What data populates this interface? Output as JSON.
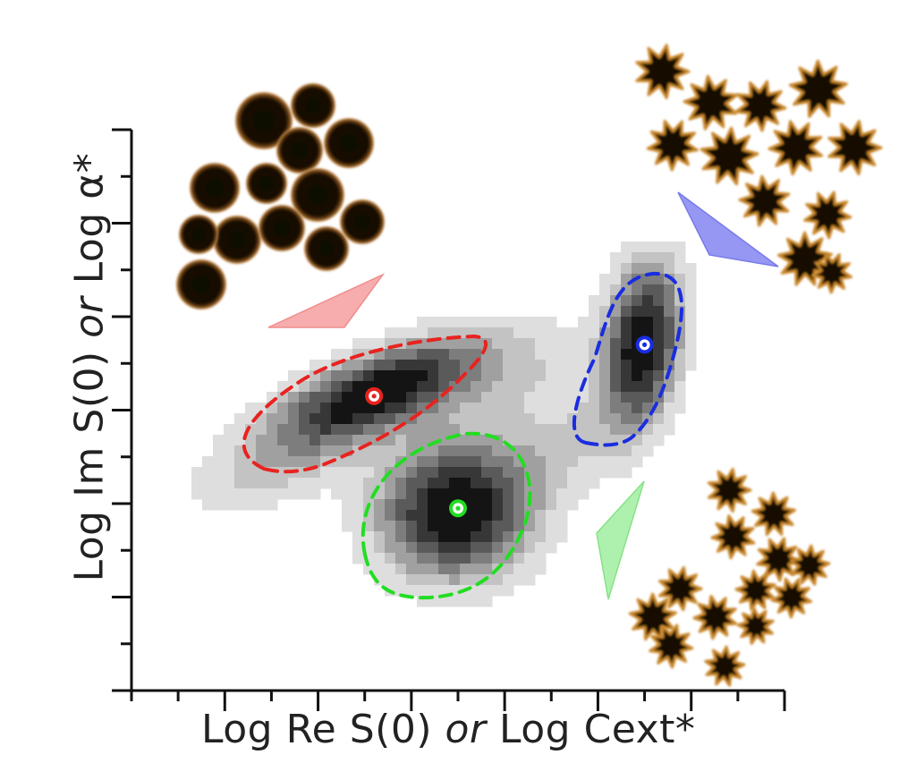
{
  "chart_data": {
    "type": "scatter",
    "title": "",
    "xlabel": {
      "prefix": "Log Re S(0) ",
      "or": "or",
      "suffix": " Log Cext*"
    },
    "ylabel": {
      "prefix": "Log Im S(0) ",
      "or": "or",
      "suffix": " Log α*"
    },
    "xlim": [
      0,
      7
    ],
    "ylim": [
      0,
      12
    ],
    "x_major_ticks": [
      1,
      2,
      3,
      4,
      5,
      6
    ],
    "y_major_ticks": [
      2,
      4,
      6,
      8,
      10,
      12
    ],
    "grid": false,
    "density_map": "grayscale 2D histogram of particle population",
    "series": [
      {
        "name": "spherical nanoparticles",
        "color": "#e8231f",
        "center": [
          2.6,
          6.3
        ],
        "contour": "dashed ellipse, elongated along diagonal"
      },
      {
        "name": "small nanostars",
        "color": "#22dd22",
        "center": [
          3.5,
          3.9
        ],
        "contour": "dashed ellipse"
      },
      {
        "name": "large nanostars",
        "color": "#1a2de0",
        "center": [
          5.5,
          7.4
        ],
        "contour": "dashed ellipse, near vertical"
      }
    ],
    "colors": {
      "red": "#e8231f",
      "green": "#22dd22",
      "blue": "#1a2de0",
      "red_arrow": "#f7a5a5",
      "green_arrow": "#a6f0a6",
      "blue_arrow": "#8a8cf2",
      "particle": "#c8862a"
    },
    "insets": [
      {
        "name": "spherical-particles-image",
        "icon": "tem-spheres"
      },
      {
        "name": "large-nanostars-image",
        "icon": "tem-large-stars"
      },
      {
        "name": "small-nanostars-image",
        "icon": "tem-small-stars"
      }
    ]
  }
}
